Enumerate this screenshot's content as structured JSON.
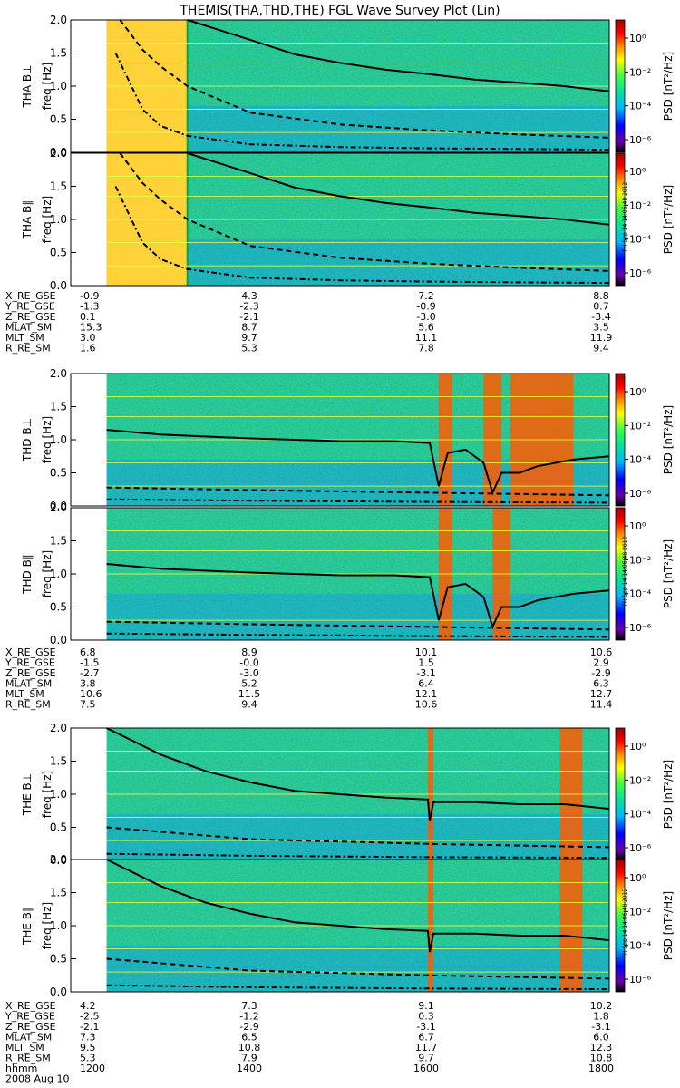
{
  "title": "THEMIS(THA,THD,THE) FGL Wave Survey Plot (Lin)",
  "stamp": "FH Sep 14 14:06:48 2012",
  "colorbar": {
    "label": "PSD [nT²/Hz]",
    "tick_labels": [
      "10⁰",
      "10⁻²",
      "10⁻⁴",
      "10⁻⁶"
    ],
    "colors": [
      "#000000",
      "#6a00a8",
      "#0000ff",
      "#00b4ff",
      "#00e0a0",
      "#40ff40",
      "#ffff00",
      "#ff8c00",
      "#ff0000",
      "#a00000"
    ]
  },
  "chart_data": [
    {
      "type": "heatmap",
      "probe": "THA",
      "ylabel": "THA B⊥",
      "ysub": "freq [Hz]",
      "ylim": [
        0,
        2
      ],
      "yticks": [
        "0.0",
        "0.5",
        "1.0",
        "1.5",
        "2.0"
      ],
      "data_start": 1240,
      "data_gap_end": 1330,
      "fce_line": {
        "x": [
          1330,
          1400,
          1450,
          1500,
          1550,
          1600,
          1650,
          1700,
          1750,
          1800
        ],
        "y": [
          2.0,
          1.7,
          1.48,
          1.35,
          1.25,
          1.18,
          1.1,
          1.05,
          1.0,
          0.92
        ]
      },
      "dashed_line": {
        "x": [
          1255,
          1280,
          1300,
          1330,
          1400,
          1500,
          1600,
          1700,
          1800
        ],
        "y": [
          2.0,
          1.55,
          1.3,
          1.0,
          0.6,
          0.42,
          0.33,
          0.27,
          0.22
        ]
      },
      "dashdot_line": {
        "x": [
          1250,
          1280,
          1300,
          1330,
          1400,
          1500,
          1600,
          1700,
          1800
        ],
        "y": [
          1.5,
          0.65,
          0.4,
          0.25,
          0.12,
          0.08,
          0.06,
          0.05,
          0.04
        ]
      }
    },
    {
      "type": "heatmap",
      "probe": "THA",
      "ylabel": "THA B∥",
      "ysub": "freq [Hz]",
      "ylim": [
        0,
        2
      ],
      "yticks": [
        "0.0",
        "0.5",
        "1.0",
        "1.5",
        "2.0"
      ],
      "data_start": 1240,
      "data_gap_end": 1330,
      "fce_line": {
        "x": [
          1330,
          1400,
          1450,
          1500,
          1550,
          1600,
          1650,
          1700,
          1750,
          1800
        ],
        "y": [
          2.0,
          1.7,
          1.48,
          1.35,
          1.25,
          1.18,
          1.1,
          1.05,
          1.0,
          0.92
        ]
      },
      "dashed_line": {
        "x": [
          1255,
          1280,
          1300,
          1330,
          1400,
          1500,
          1600,
          1700,
          1800
        ],
        "y": [
          2.0,
          1.55,
          1.3,
          1.0,
          0.6,
          0.42,
          0.33,
          0.27,
          0.22
        ]
      },
      "dashdot_line": {
        "x": [
          1250,
          1280,
          1300,
          1330,
          1400,
          1500,
          1600,
          1700,
          1800
        ],
        "y": [
          1.5,
          0.65,
          0.4,
          0.25,
          0.12,
          0.08,
          0.06,
          0.05,
          0.04
        ]
      }
    },
    {
      "type": "heatmap",
      "probe": "THD",
      "ylabel": "THD B⊥",
      "ysub": "freq [Hz]",
      "ylim": [
        0,
        2
      ],
      "yticks": [
        "0.0",
        "0.5",
        "1.0",
        "1.5",
        "2.0"
      ],
      "data_start": 1240,
      "red_bands": [
        [
          1610,
          1625
        ],
        [
          1660,
          1680
        ],
        [
          1690,
          1760
        ]
      ],
      "fce_line": {
        "x": [
          1240,
          1300,
          1400,
          1500,
          1560,
          1600,
          1610,
          1620,
          1640,
          1660,
          1670,
          1680,
          1700,
          1720,
          1760,
          1800
        ],
        "y": [
          1.15,
          1.08,
          1.02,
          0.98,
          0.98,
          0.95,
          0.3,
          0.8,
          0.85,
          0.65,
          0.2,
          0.5,
          0.5,
          0.6,
          0.7,
          0.75
        ]
      },
      "dashed_line": {
        "x": [
          1240,
          1400,
          1600,
          1800
        ],
        "y": [
          0.28,
          0.24,
          0.2,
          0.16
        ]
      },
      "dashdot_line": {
        "x": [
          1240,
          1400,
          1600,
          1800
        ],
        "y": [
          0.1,
          0.08,
          0.06,
          0.05
        ]
      }
    },
    {
      "type": "heatmap",
      "probe": "THD",
      "ylabel": "THD B∥",
      "ysub": "freq [Hz]",
      "ylim": [
        0,
        2
      ],
      "yticks": [
        "0.0",
        "0.5",
        "1.0",
        "1.5",
        "2.0"
      ],
      "data_start": 1240,
      "red_bands": [
        [
          1610,
          1625
        ],
        [
          1670,
          1690
        ]
      ],
      "fce_line": {
        "x": [
          1240,
          1300,
          1400,
          1500,
          1560,
          1600,
          1610,
          1620,
          1640,
          1660,
          1670,
          1680,
          1700,
          1720,
          1760,
          1800
        ],
        "y": [
          1.15,
          1.08,
          1.02,
          0.98,
          0.98,
          0.95,
          0.3,
          0.8,
          0.85,
          0.65,
          0.2,
          0.5,
          0.5,
          0.6,
          0.7,
          0.75
        ]
      },
      "dashed_line": {
        "x": [
          1240,
          1400,
          1600,
          1800
        ],
        "y": [
          0.28,
          0.24,
          0.2,
          0.16
        ]
      },
      "dashdot_line": {
        "x": [
          1240,
          1400,
          1600,
          1800
        ],
        "y": [
          0.1,
          0.08,
          0.06,
          0.05
        ]
      }
    },
    {
      "type": "heatmap",
      "probe": "THE",
      "ylabel": "THE B⊥",
      "ysub": "freq [Hz]",
      "ylim": [
        0,
        2
      ],
      "yticks": [
        "0.0",
        "0.5",
        "1.0",
        "1.5",
        "2.0"
      ],
      "data_start": 1240,
      "red_bands": [
        [
          1598,
          1604
        ],
        [
          1745,
          1770
        ]
      ],
      "fce_line": {
        "x": [
          1240,
          1300,
          1350,
          1400,
          1450,
          1500,
          1550,
          1598,
          1600,
          1604,
          1650,
          1700,
          1750,
          1800
        ],
        "y": [
          2.0,
          1.6,
          1.35,
          1.18,
          1.05,
          1.0,
          0.95,
          0.92,
          0.6,
          0.88,
          0.88,
          0.85,
          0.85,
          0.78
        ]
      },
      "dashed_line": {
        "x": [
          1240,
          1400,
          1600,
          1800
        ],
        "y": [
          0.5,
          0.32,
          0.25,
          0.2
        ]
      },
      "dashdot_line": {
        "x": [
          1240,
          1400,
          1600,
          1800
        ],
        "y": [
          0.1,
          0.07,
          0.05,
          0.04
        ]
      }
    },
    {
      "type": "heatmap",
      "probe": "THE",
      "ylabel": "THE B∥",
      "ysub": "freq [Hz]",
      "ylim": [
        0,
        2
      ],
      "yticks": [
        "0.0",
        "0.5",
        "1.0",
        "1.5",
        "2.0"
      ],
      "data_start": 1240,
      "red_bands": [
        [
          1598,
          1604
        ],
        [
          1745,
          1770
        ]
      ],
      "fce_line": {
        "x": [
          1240,
          1300,
          1350,
          1400,
          1450,
          1500,
          1550,
          1598,
          1600,
          1604,
          1650,
          1700,
          1750,
          1800
        ],
        "y": [
          2.0,
          1.6,
          1.35,
          1.18,
          1.05,
          1.0,
          0.95,
          0.92,
          0.6,
          0.88,
          0.88,
          0.85,
          0.85,
          0.78
        ]
      },
      "dashed_line": {
        "x": [
          1240,
          1400,
          1600,
          1800
        ],
        "y": [
          0.5,
          0.32,
          0.25,
          0.2
        ]
      },
      "dashdot_line": {
        "x": [
          1240,
          1400,
          1600,
          1800
        ],
        "y": [
          0.1,
          0.07,
          0.05,
          0.04
        ]
      }
    }
  ],
  "ephem_tables": [
    {
      "probe": "THA",
      "rows": [
        {
          "label": "X_RE_GSE",
          "values": [
            "-0.9",
            "4.3",
            "7.2",
            "8.8"
          ]
        },
        {
          "label": "Y_RE_GSE",
          "values": [
            "-1.3",
            "-2.3",
            "-0.9",
            "0.7"
          ]
        },
        {
          "label": "Z_RE_GSE",
          "values": [
            "0.1",
            "-2.1",
            "-3.0",
            "-3.4"
          ]
        },
        {
          "label": "MLAT_SM",
          "values": [
            "15.3",
            "8.7",
            "5.6",
            "3.5"
          ]
        },
        {
          "label": "MLT_SM",
          "values": [
            "3.0",
            "9.7",
            "11.1",
            "11.9"
          ]
        },
        {
          "label": "R_RE_SM",
          "values": [
            "1.6",
            "5.3",
            "7.8",
            "9.4"
          ]
        }
      ]
    },
    {
      "probe": "THD",
      "rows": [
        {
          "label": "X_RE_GSE",
          "values": [
            "6.8",
            "8.9",
            "10.1",
            "10.6"
          ]
        },
        {
          "label": "Y_RE_GSE",
          "values": [
            "-1.5",
            "-0.0",
            "1.5",
            "2.9"
          ]
        },
        {
          "label": "Z_RE_GSE",
          "values": [
            "-2.7",
            "-3.0",
            "-3.1",
            "-2.9"
          ]
        },
        {
          "label": "MLAT_SM",
          "values": [
            "3.8",
            "5.2",
            "6.4",
            "6.3"
          ]
        },
        {
          "label": "MLT_SM",
          "values": [
            "10.6",
            "11.5",
            "12.1",
            "12.7"
          ]
        },
        {
          "label": "R_RE_SM",
          "values": [
            "7.5",
            "9.4",
            "10.6",
            "11.4"
          ]
        }
      ]
    },
    {
      "probe": "THE",
      "rows": [
        {
          "label": "X_RE_GSE",
          "values": [
            "4.2",
            "7.3",
            "9.1",
            "10.2"
          ]
        },
        {
          "label": "Y_RE_GSE",
          "values": [
            "-2.5",
            "-1.2",
            "0.3",
            "1.8"
          ]
        },
        {
          "label": "Z_RE_GSE",
          "values": [
            "-2.1",
            "-2.9",
            "-3.1",
            "-3.1"
          ]
        },
        {
          "label": "MLAT_SM",
          "values": [
            "7.3",
            "6.5",
            "6.7",
            "6.0"
          ]
        },
        {
          "label": "MLT_SM",
          "values": [
            "9.5",
            "10.8",
            "11.7",
            "12.3"
          ]
        },
        {
          "label": "R_RE_SM",
          "values": [
            "5.3",
            "7.9",
            "9.7",
            "10.8"
          ]
        }
      ]
    }
  ],
  "time_axis": {
    "label": "hhmm",
    "date": "2008 Aug 10",
    "ticks": [
      "1200",
      "1400",
      "1600",
      "1800"
    ],
    "range": [
      1200,
      1800
    ]
  }
}
